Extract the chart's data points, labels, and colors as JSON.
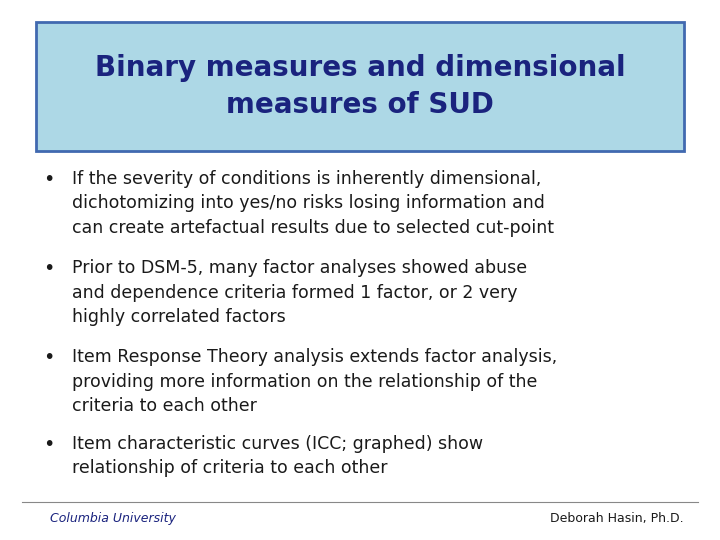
{
  "title_line1": "Binary measures and dimensional",
  "title_line2": "measures of SUD",
  "title_bg_color": "#add8e6",
  "title_border_color": "#4169b0",
  "title_text_color": "#1a237e",
  "bg_color": "#ffffff",
  "bullet_color": "#1a1a1a",
  "footer_left": "Columbia University",
  "footer_right": "Deborah Hasin, Ph.D.",
  "footer_color": "#1a237e",
  "bullets": [
    "If the severity of conditions is inherently dimensional,\ndichotomizing into yes/no risks losing information and\ncan create artefactual results due to selected cut-point",
    "Prior to DSM-5, many factor analyses showed abuse\nand dependence criteria formed 1 factor, or 2 very\nhighly correlated factors",
    "Item Response Theory analysis extends factor analysis,\nproviding more information on the relationship of the\ncriteria to each other",
    "Item characteristic curves (ICC; graphed) show\nrelationship of criteria to each other"
  ]
}
